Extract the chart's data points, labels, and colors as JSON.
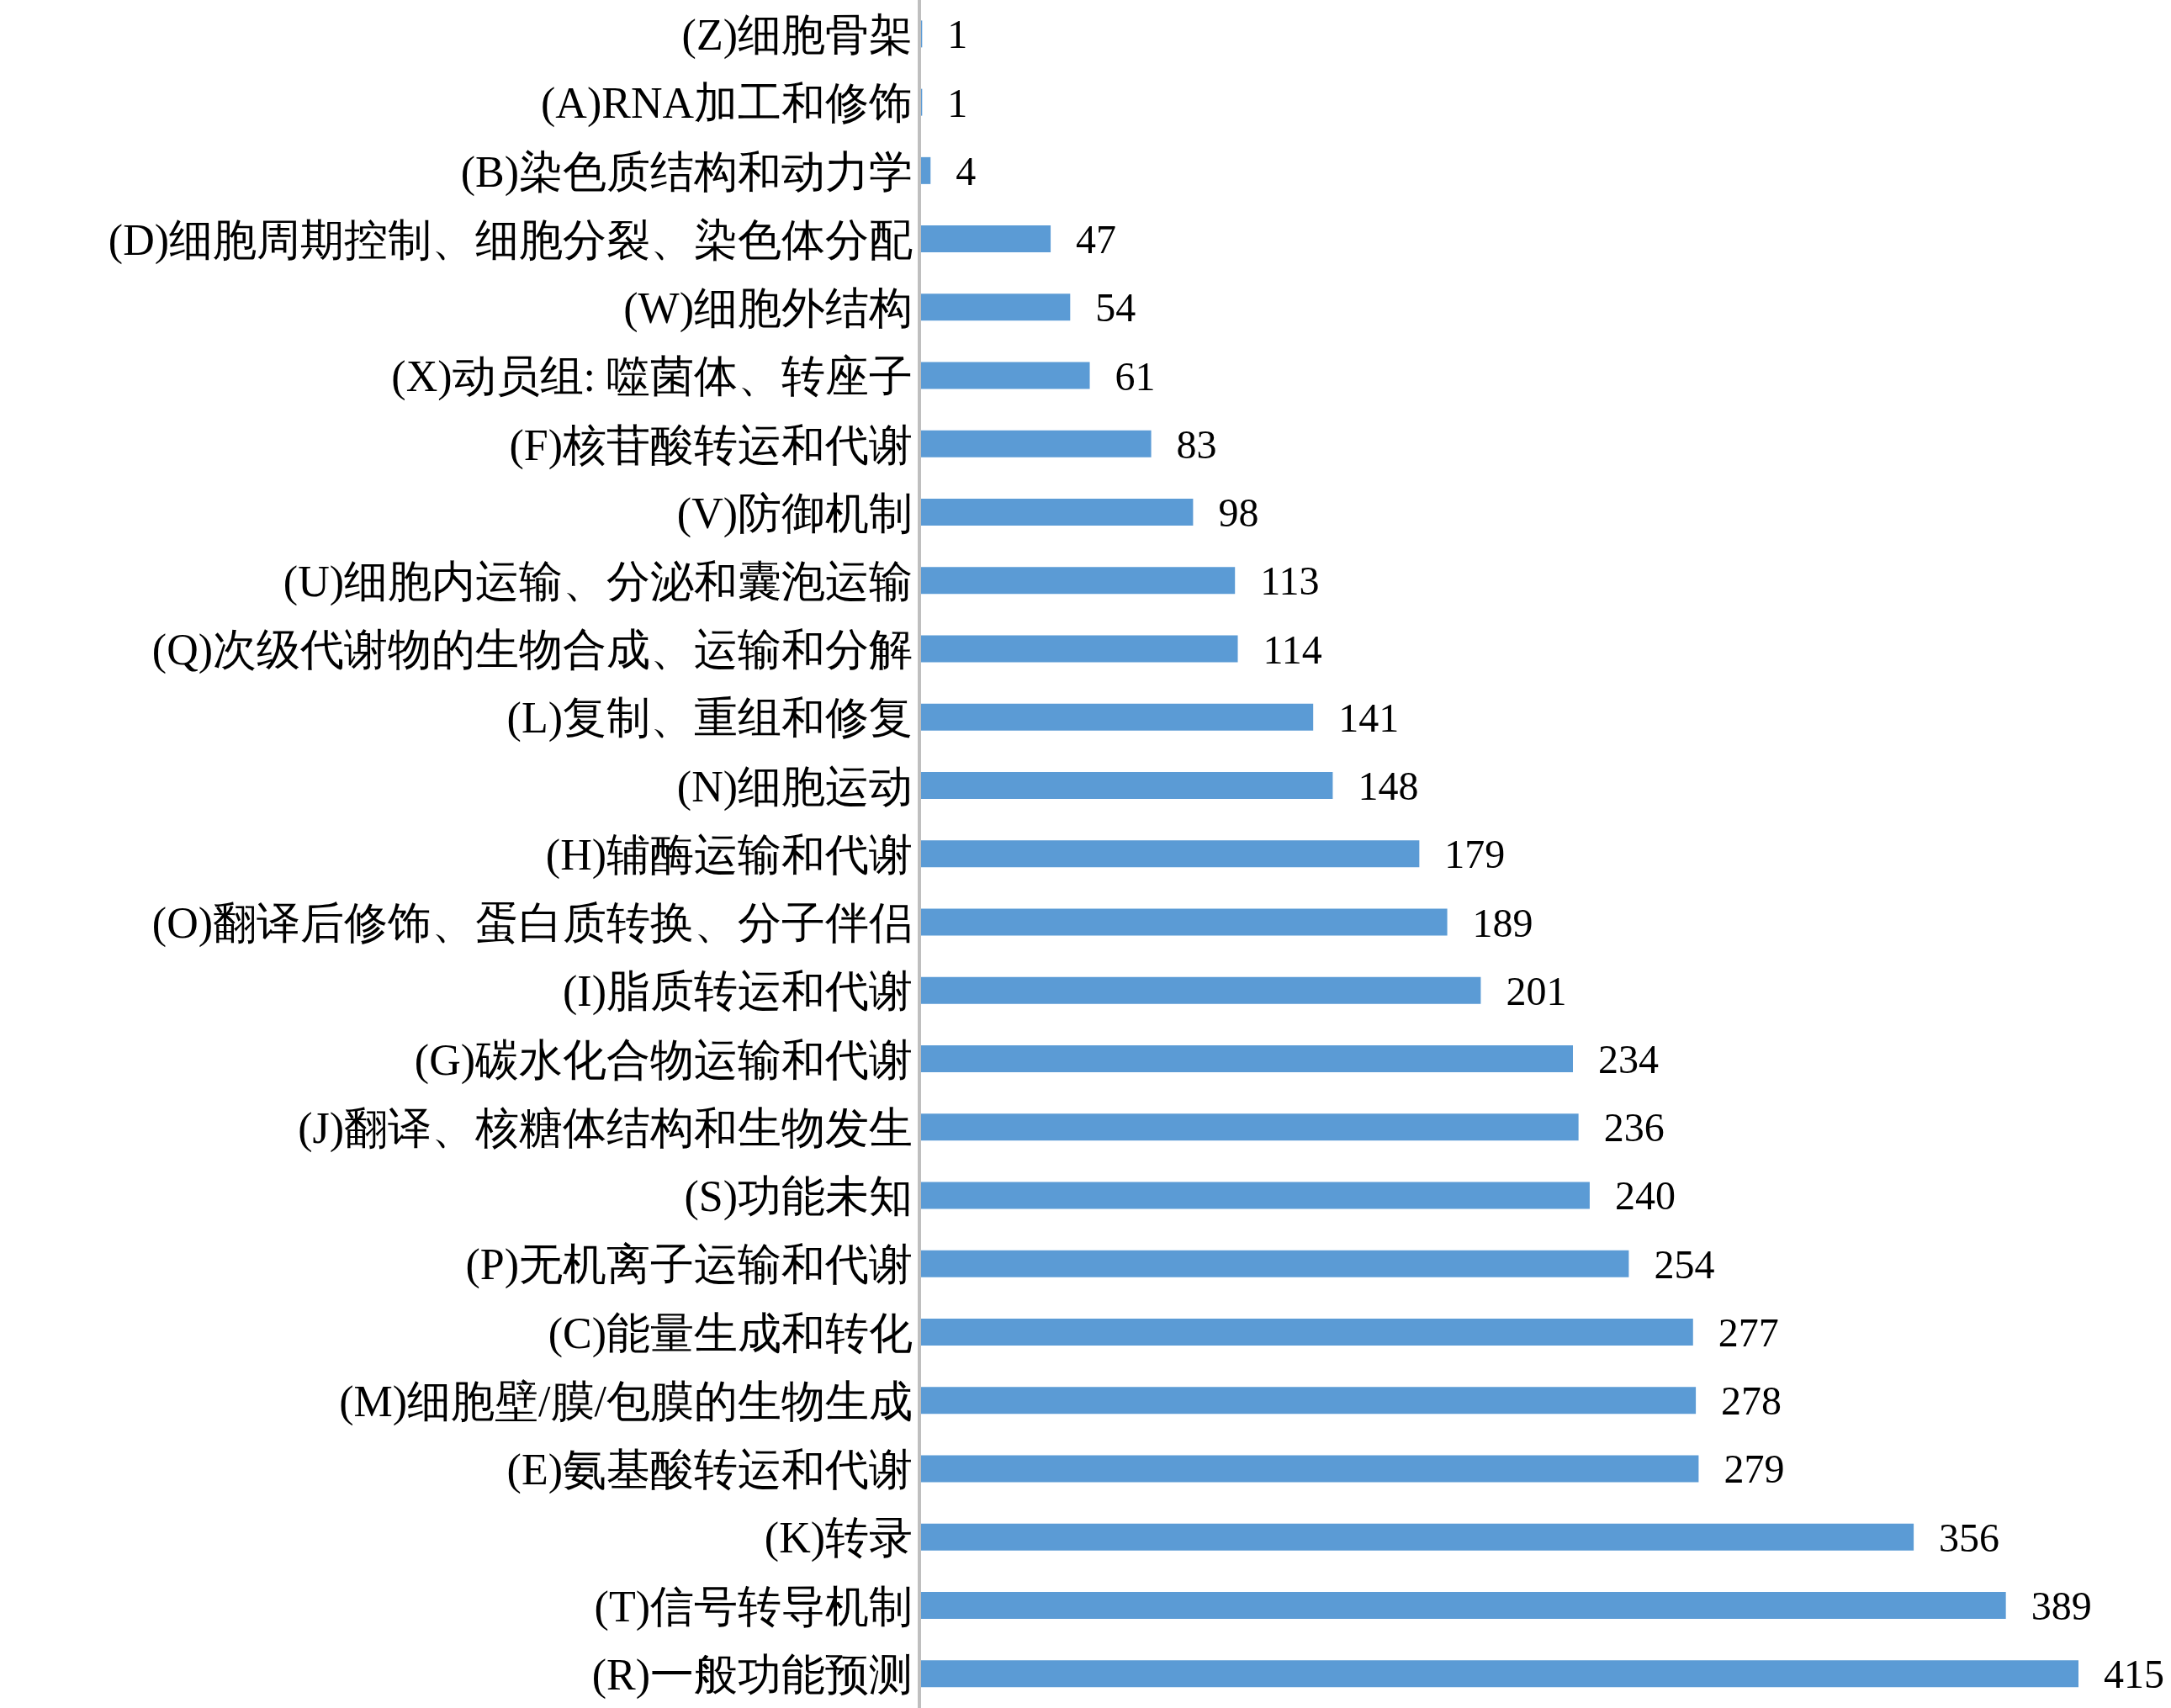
{
  "chart_data": {
    "type": "bar",
    "orientation": "horizontal",
    "data_labels": true,
    "categories": [
      "(Z)细胞骨架",
      "(A)RNA加工和修饰",
      "(B)染色质结构和动力学",
      "(D)细胞周期控制、细胞分裂、染色体分配",
      "(W)细胞外结构",
      "(X)动员组: 噬菌体、转座子",
      "(F)核苷酸转运和代谢",
      "(V)防御机制",
      "(U)细胞内运输、分泌和囊泡运输",
      "(Q)次级代谢物的生物合成、运输和分解",
      "(L)复制、重组和修复",
      "(N)细胞运动",
      "(H)辅酶运输和代谢",
      "(O)翻译后修饰、蛋白质转换、分子伴侣",
      "(I)脂质转运和代谢",
      "(G)碳水化合物运输和代谢",
      "(J)翻译、核糖体结构和生物发生",
      "(S)功能未知",
      "(P)无机离子运输和代谢",
      "(C)能量生成和转化",
      "(M)细胞壁/膜/包膜的生物生成",
      "(E)氨基酸转运和代谢",
      "(K)转录",
      "(T)信号转导机制",
      "(R)一般功能预测"
    ],
    "values": [
      1,
      1,
      4,
      47,
      54,
      61,
      83,
      98,
      113,
      114,
      141,
      148,
      179,
      189,
      201,
      234,
      236,
      240,
      254,
      277,
      278,
      279,
      356,
      389,
      415
    ],
    "color": "#5b9bd5"
  }
}
